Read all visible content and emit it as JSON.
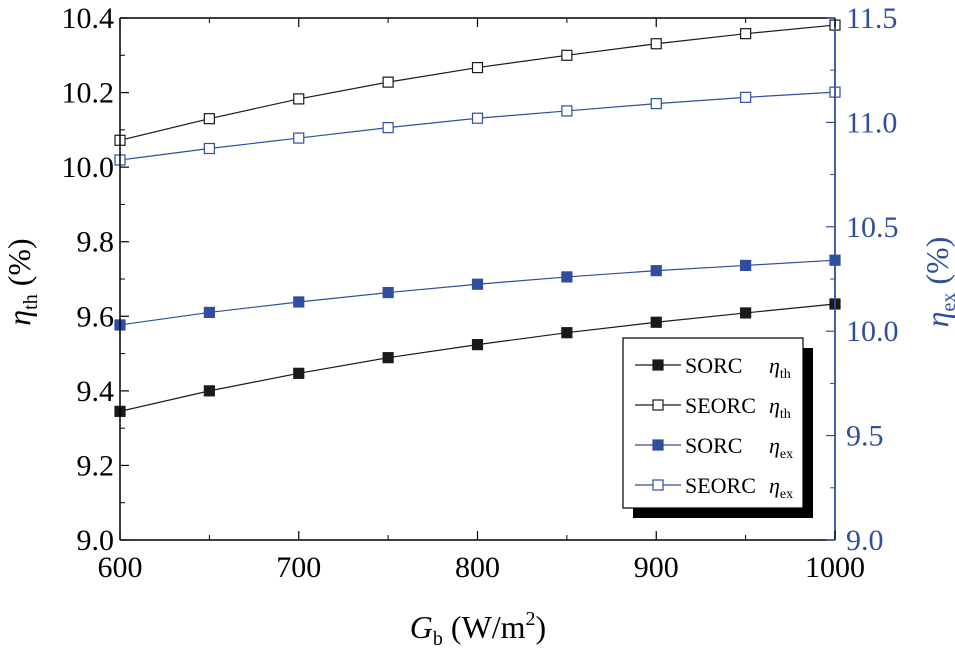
{
  "chart_data": {
    "type": "line",
    "x": [
      600,
      650,
      700,
      750,
      800,
      850,
      900,
      950,
      1000
    ],
    "xlim": [
      600,
      1000
    ],
    "xticks": [
      "600",
      "700",
      "800",
      "900",
      "1000"
    ],
    "xlabel": {
      "main": "G",
      "sub": "b",
      "unit": " (W/m",
      "sup": "2",
      "close": ")"
    },
    "left_axis": {
      "ylim": [
        9.0,
        10.4
      ],
      "ticks": [
        "9.0",
        "9.2",
        "9.4",
        "9.6",
        "9.8",
        "10.0",
        "10.2",
        "10.4"
      ],
      "label": {
        "main": "η",
        "sub": "th",
        "unit": " (%)"
      }
    },
    "right_axis": {
      "ylim": [
        9.0,
        11.5
      ],
      "ticks": [
        "9.0",
        "9.5",
        "10.0",
        "10.5",
        "11.0",
        "11.5"
      ],
      "label": {
        "main": "η",
        "sub": "ex",
        "unit": " (%)"
      },
      "color": "#2f4ea0"
    },
    "series": [
      {
        "name": "SORC",
        "symbol": "η",
        "sub": "th",
        "axis": "left",
        "marker": "square-filled",
        "color": "#1a1a1a",
        "values": [
          9.345,
          9.4,
          9.447,
          9.489,
          9.524,
          9.556,
          9.584,
          9.609,
          9.633
        ]
      },
      {
        "name": "SEORC",
        "symbol": "η",
        "sub": "th",
        "axis": "left",
        "marker": "square-open",
        "color": "#1a1a1a",
        "values": [
          10.072,
          10.13,
          10.183,
          10.228,
          10.267,
          10.3,
          10.331,
          10.358,
          10.381
        ]
      },
      {
        "name": "SORC",
        "symbol": "η",
        "sub": "ex",
        "axis": "right",
        "marker": "square-filled",
        "color": "#2f4ea0",
        "values": [
          10.03,
          10.09,
          10.14,
          10.185,
          10.225,
          10.26,
          10.29,
          10.315,
          10.34
        ]
      },
      {
        "name": "SEORC",
        "symbol": "η",
        "sub": "ex",
        "axis": "right",
        "marker": "square-open",
        "color": "#2f4ea0",
        "values": [
          10.82,
          10.875,
          10.925,
          10.975,
          11.02,
          11.055,
          11.09,
          11.12,
          11.145
        ]
      }
    ],
    "legend_position": "bottom-right"
  }
}
